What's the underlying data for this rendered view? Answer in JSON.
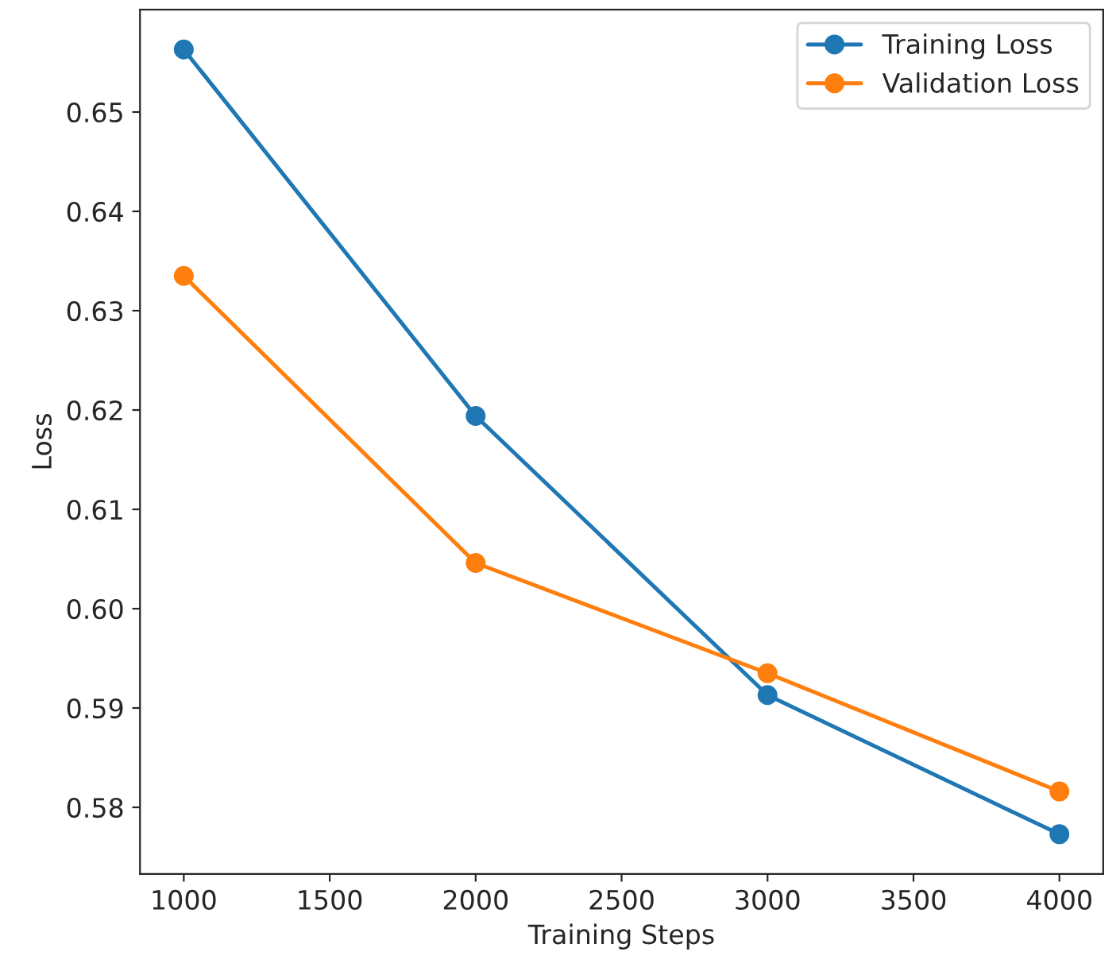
{
  "chart_data": {
    "type": "line",
    "xlabel": "Training Steps",
    "ylabel": "Loss",
    "x": [
      1000,
      2000,
      3000,
      4000
    ],
    "series": [
      {
        "name": "Training Loss",
        "color": "#1f77b4",
        "values": [
          0.6563,
          0.6194,
          0.5913,
          0.5773
        ]
      },
      {
        "name": "Validation Loss",
        "color": "#ff7f0e",
        "values": [
          0.6335,
          0.6046,
          0.5935,
          0.5816
        ]
      }
    ],
    "xlim": [
      850,
      4150
    ],
    "ylim": [
      0.5733,
      0.6603
    ],
    "xticks": [
      1000,
      1500,
      2000,
      2500,
      3000,
      3500,
      4000
    ],
    "yticks": [
      {
        "value": 0.58,
        "label": "0.58"
      },
      {
        "value": 0.59,
        "label": "0.59"
      },
      {
        "value": 0.6,
        "label": "0.60"
      },
      {
        "value": 0.61,
        "label": "0.61"
      },
      {
        "value": 0.62,
        "label": "0.62"
      },
      {
        "value": 0.63,
        "label": "0.63"
      },
      {
        "value": 0.64,
        "label": "0.64"
      },
      {
        "value": 0.65,
        "label": "0.65"
      }
    ],
    "legend": "top right",
    "marker": "circle",
    "line_style": "solid",
    "grid": false
  }
}
